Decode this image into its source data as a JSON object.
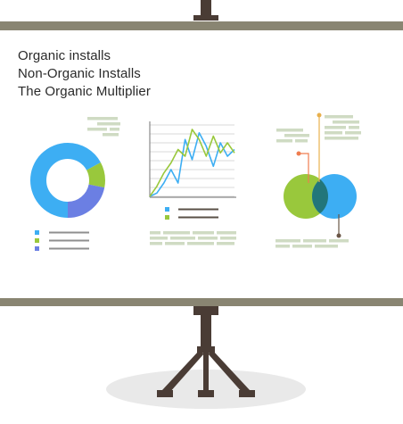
{
  "headline": {
    "lines": [
      "Organic installs",
      "Non-Organic Installs",
      "The Organic Multiplier"
    ]
  },
  "colors": {
    "screen_bar": "#898572",
    "stand": "#4a3c35",
    "shadow": "#e9e9e9",
    "text": "#2a2a2a",
    "placeholder_text": "#cfdbc3",
    "legend_line": "#5a5047",
    "blue": "#3daef3",
    "green": "#99c83c",
    "purple": "#6b7fe3",
    "teal": "#22767a",
    "grid": "#d9d9d9",
    "orange_dot": "#ef7d4f",
    "tan_dot": "#e8b04c",
    "brown_dot": "#6b5647"
  },
  "chart_data": [
    {
      "type": "pie",
      "style": "donut",
      "slices": [
        {
          "color": "blue",
          "value": 0.67
        },
        {
          "color": "green",
          "value": 0.11
        },
        {
          "color": "purple",
          "value": 0.22
        }
      ],
      "legend": [
        "blue",
        "green",
        "purple"
      ]
    },
    {
      "type": "line",
      "grid": true,
      "series": [
        {
          "color": "blue",
          "values": [
            0,
            5,
            20,
            40,
            20,
            85,
            55,
            95,
            75,
            45,
            80,
            60,
            70
          ]
        },
        {
          "color": "green",
          "values": [
            0,
            15,
            35,
            50,
            70,
            60,
            100,
            85,
            60,
            90,
            65,
            80,
            65
          ]
        }
      ],
      "legend": [
        "blue",
        "green"
      ]
    },
    {
      "type": "venn",
      "sets": [
        {
          "color": "green"
        },
        {
          "color": "blue"
        }
      ],
      "intersection_color": "teal"
    }
  ]
}
